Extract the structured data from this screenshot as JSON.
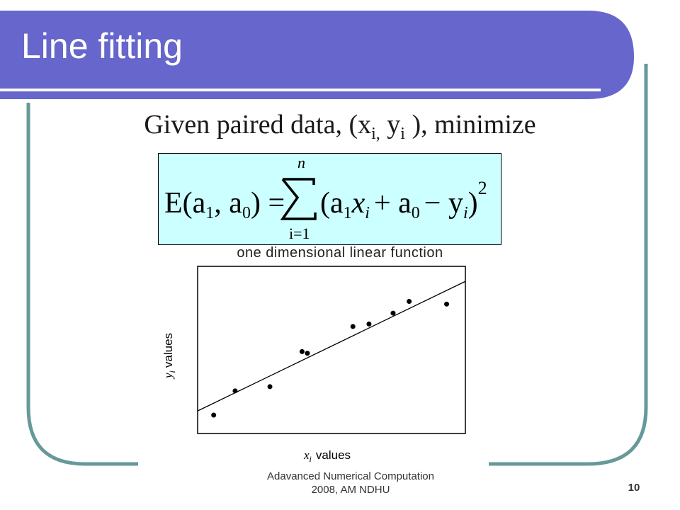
{
  "slide": {
    "title": "Line fitting",
    "intro": {
      "lead": "Given paired data, (x",
      "sub_x": "i,",
      "mid": " y",
      "sub_y": "i",
      "tail": " ), minimize"
    },
    "formula": {
      "lhs": "E(a",
      "lhs_sub1": "1",
      "lhs_comma": ", a",
      "lhs_sub0": "0",
      "lhs_close": ") =",
      "sum_upper": "n",
      "sum_lower": "i=1",
      "term_open": "(a",
      "t_sub1": "1",
      "t_x": "x",
      "t_xi": "i",
      "t_plus": "+ a",
      "t_sub0": "0",
      "t_minus": "− y",
      "t_yi": "i",
      "t_close": ")",
      "power": "2"
    },
    "caption": "one dimensional linear function",
    "footer_line1": "Adavanced Numerical Computation",
    "footer_line2": "2008, AM NDHU",
    "page_number": "10",
    "colors": {
      "title_bar": "#6666cc",
      "frame_border": "#669999",
      "formula_bg": "#ccffff"
    }
  },
  "chart_data": {
    "type": "scatter",
    "xlabel": "x_i values",
    "ylabel": "y_i values",
    "xlim": [
      0,
      1
    ],
    "ylim": [
      0,
      1
    ],
    "points": [
      {
        "x": 0.06,
        "y": 0.11
      },
      {
        "x": 0.14,
        "y": 0.255
      },
      {
        "x": 0.27,
        "y": 0.28
      },
      {
        "x": 0.39,
        "y": 0.49
      },
      {
        "x": 0.41,
        "y": 0.48
      },
      {
        "x": 0.58,
        "y": 0.64
      },
      {
        "x": 0.64,
        "y": 0.655
      },
      {
        "x": 0.73,
        "y": 0.72
      },
      {
        "x": 0.79,
        "y": 0.79
      },
      {
        "x": 0.93,
        "y": 0.774
      }
    ],
    "fit_line": {
      "x0": 0,
      "y0": 0.135,
      "x1": 1,
      "y1": 0.91
    }
  }
}
